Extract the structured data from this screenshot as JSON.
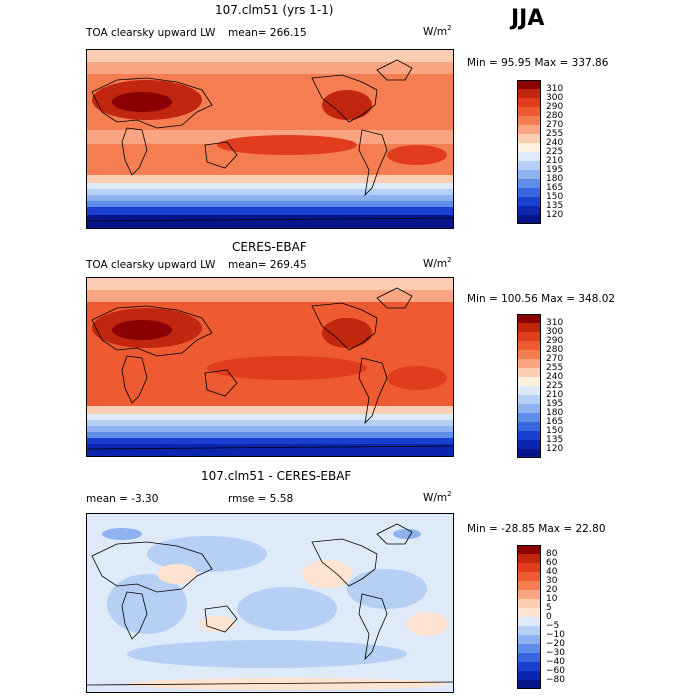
{
  "season": "JJA",
  "panels": [
    {
      "title": "107.clm51 (yrs 1-1)",
      "subtitle": "TOA clearsky upward LW",
      "mean_text": "mean=  266.15",
      "units": "W/m",
      "units_exp": "2",
      "minmax": "Min =   95.95 Max =  337.86",
      "kind": "abs"
    },
    {
      "title": "CERES-EBAF",
      "subtitle": "TOA clearsky upward LW",
      "mean_text": "mean=  269.45",
      "units": "W/m",
      "units_exp": "2",
      "minmax": "Min = 100.56 Max =  348.02",
      "kind": "abs"
    },
    {
      "title": "107.clm51 - CERES-EBAF",
      "mean_text": "mean =   -3.30",
      "rmse_text": "rmse =    5.58",
      "units": "W/m",
      "units_exp": "2",
      "minmax": "Min = -28.85 Max =   22.80",
      "kind": "diff"
    }
  ],
  "colorbar_abs": {
    "levels": [
      "310",
      "300",
      "290",
      "280",
      "270",
      "255",
      "240",
      "225",
      "210",
      "195",
      "180",
      "165",
      "150",
      "135",
      "120"
    ],
    "colors": [
      "#8b0000",
      "#c1260f",
      "#e03c1d",
      "#ee5a32",
      "#f47d52",
      "#f9a583",
      "#fbcdb3",
      "#fff0e0",
      "#dfeaf8",
      "#b6cff5",
      "#8eb2f0",
      "#5f8de8",
      "#3866df",
      "#1b3fd0",
      "#0c26b0",
      "#06168a"
    ]
  },
  "colorbar_diff": {
    "levels": [
      "80",
      "60",
      "40",
      "30",
      "20",
      "10",
      "5",
      "0",
      "−5",
      "−10",
      "−20",
      "−30",
      "−40",
      "−60",
      "−80"
    ],
    "colors": [
      "#8b0000",
      "#c1260f",
      "#e03c1d",
      "#ee5a32",
      "#f47d52",
      "#f9a583",
      "#fbcdb3",
      "#fde3d0",
      "#dfeaf8",
      "#b6cff5",
      "#8eb2f0",
      "#5f8de8",
      "#3866df",
      "#1b3fd0",
      "#0c26b0",
      "#06168a"
    ]
  }
}
